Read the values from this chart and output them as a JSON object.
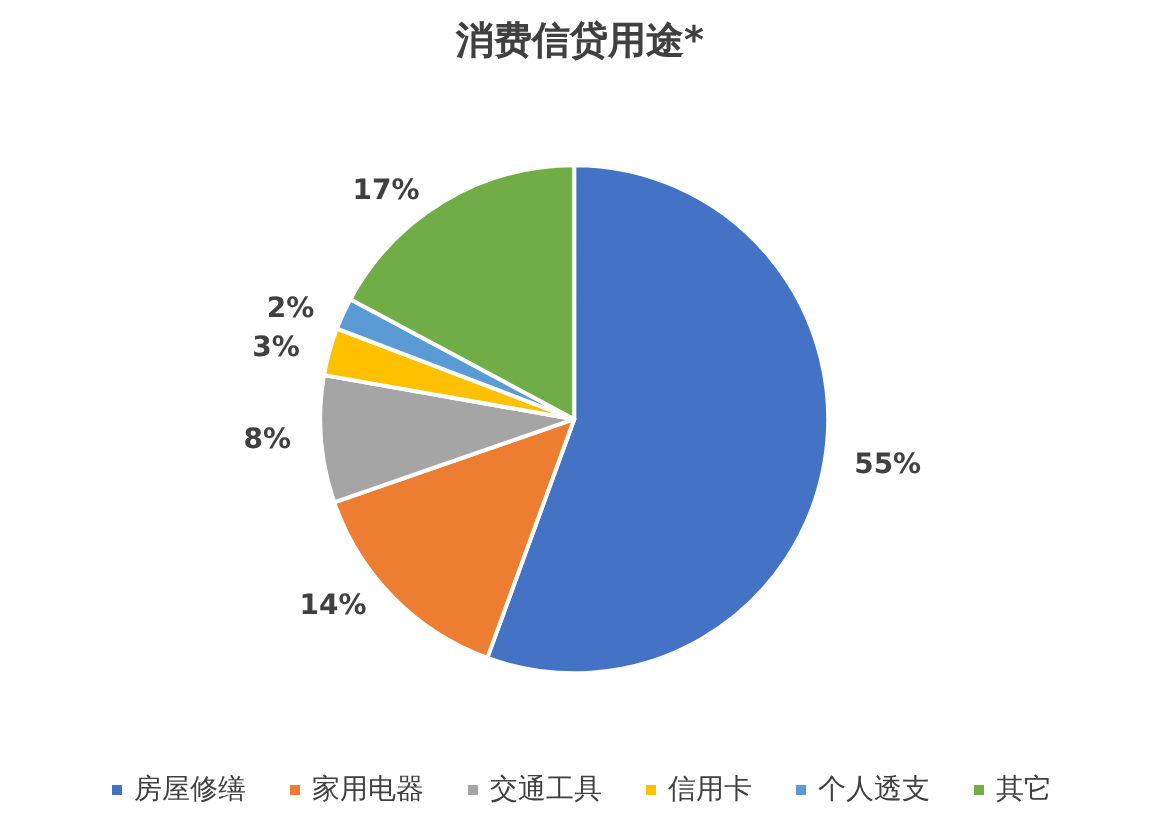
{
  "chart_data": {
    "type": "pie",
    "title": "消费信贷用途*",
    "categories": [
      "房屋修缮",
      "家用电器",
      "交通工具",
      "信用卡",
      "个人透支",
      "其它"
    ],
    "values": [
      55,
      14,
      8,
      3,
      2,
      17
    ],
    "value_labels": [
      "55%",
      "14%",
      "8%",
      "3%",
      "2%",
      "17%"
    ],
    "colors": [
      "#4472c4",
      "#ed7d31",
      "#a5a5a5",
      "#ffc000",
      "#5b9bd5",
      "#70ad47"
    ],
    "legend": "bottom"
  }
}
